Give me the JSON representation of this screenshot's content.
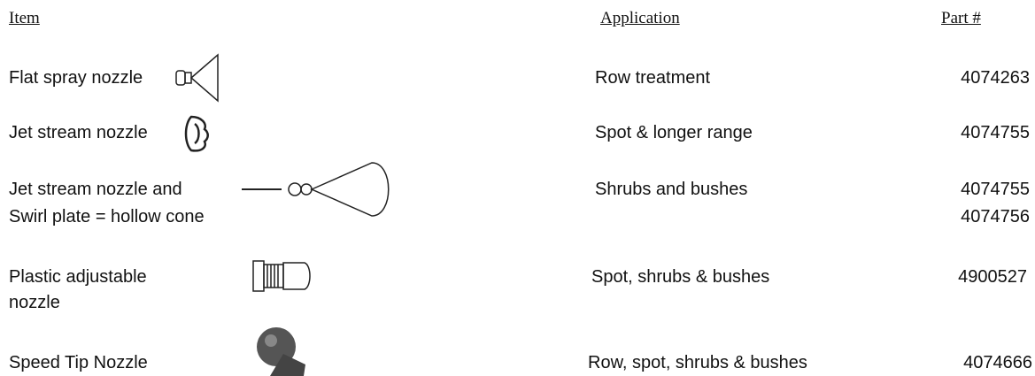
{
  "header": {
    "item": "Item",
    "application": "Application",
    "part": "Part #"
  },
  "rows": [
    {
      "item": [
        "Flat spray nozzle"
      ],
      "application": "Row treatment",
      "part": [
        "4074263"
      ]
    },
    {
      "item": [
        "Jet stream nozzle"
      ],
      "application": "Spot & longer range",
      "part": [
        "4074755"
      ]
    },
    {
      "item": [
        "Jet stream nozzle and",
        "Swirl plate = hollow cone"
      ],
      "application": "Shrubs and bushes",
      "part": [
        "4074755",
        "4074756"
      ]
    },
    {
      "item": [
        "Plastic adjustable",
        "nozzle"
      ],
      "application": "Spot, shrubs & bushes",
      "part": [
        "4900527"
      ]
    },
    {
      "item": [
        "Speed Tip Nozzle"
      ],
      "application": "Row, spot, shrubs & bushes",
      "part": [
        "4074666"
      ]
    }
  ]
}
